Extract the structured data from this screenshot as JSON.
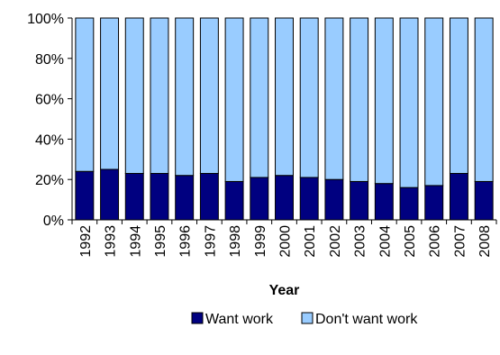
{
  "chart_data": {
    "type": "bar",
    "stacked": true,
    "percent_stacked": true,
    "categories": [
      "1992",
      "1993",
      "1994",
      "1995",
      "1996",
      "1997",
      "1998",
      "1999",
      "2000",
      "2001",
      "2002",
      "2003",
      "2004",
      "2005",
      "2006",
      "2007",
      "2008"
    ],
    "series": [
      {
        "name": "Want work",
        "color": "#000080",
        "values": [
          24,
          25,
          23,
          23,
          22,
          23,
          19,
          21,
          22,
          21,
          20,
          19,
          18,
          16,
          17,
          23,
          19
        ]
      },
      {
        "name": "Don't want work",
        "color": "#99ccff",
        "values": [
          76,
          75,
          77,
          77,
          78,
          77,
          81,
          79,
          78,
          79,
          80,
          81,
          82,
          84,
          83,
          77,
          81
        ]
      }
    ],
    "xlabel": "Year",
    "ylabel": "",
    "ylim": [
      0,
      100
    ],
    "yticks": [
      "0%",
      "20%",
      "40%",
      "60%",
      "80%",
      "100%"
    ],
    "grid": false,
    "legend_position": "bottom"
  }
}
